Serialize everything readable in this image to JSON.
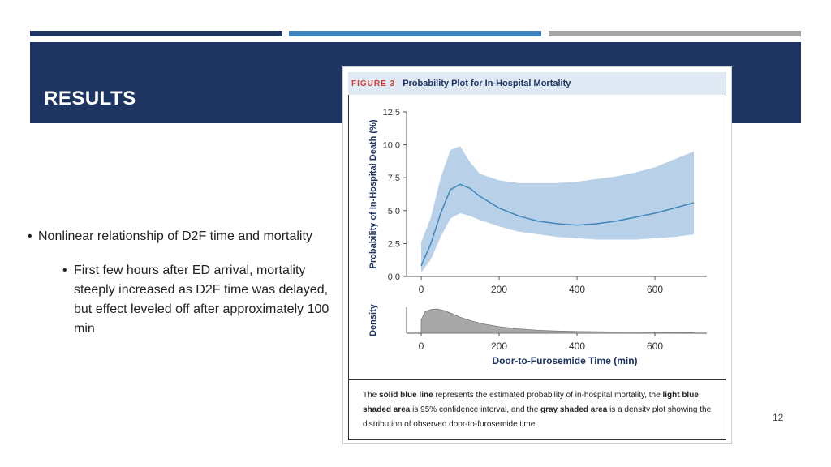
{
  "slide": {
    "title": "RESULTS",
    "page_number": "12",
    "colors": {
      "dark_blue": "#1e3461",
      "mid_blue": "#3d84bf",
      "gray": "#a5a5a5"
    }
  },
  "bullets": {
    "level1": "Nonlinear relationship of D2F time and mortality",
    "level2": "First few hours after ED arrival, mortality steeply increased as D2F time was delayed, but effect leveled off after approximately 100 min"
  },
  "figure": {
    "label": "FIGURE 3",
    "title": "Probability Plot for In-Hospital Mortality",
    "caption": {
      "p1": "The ",
      "b1": "solid blue line",
      "p2": " represents the estimated probability of in-hospital mortality, the ",
      "b2": "light blue shaded area",
      "p3": " is 95% confidence interval, and the ",
      "b3": "gray shaded area",
      "p4": " is a density plot showing the distribution of observed door-to-furosemide time."
    }
  },
  "chart_data": [
    {
      "type": "line",
      "ylabel": "Probability of In-Hospital Death (%)",
      "xlim": [
        0,
        700
      ],
      "ylim": [
        0,
        12.5
      ],
      "xticks": [
        0,
        200,
        400,
        600
      ],
      "yticks": [
        0.0,
        2.5,
        5.0,
        7.5,
        10.0,
        12.5
      ],
      "ytick_labels": [
        "0.0",
        "2.5",
        "5.0",
        "7.5",
        "10.0",
        "12.5"
      ],
      "series": [
        {
          "x": [
            0,
            25,
            50,
            75,
            100,
            125,
            150,
            200,
            250,
            300,
            350,
            400,
            450,
            500,
            550,
            600,
            650,
            700
          ],
          "y": [
            0.8,
            2.5,
            4.8,
            6.6,
            7.0,
            6.7,
            6.1,
            5.2,
            4.6,
            4.2,
            4.0,
            3.9,
            4.0,
            4.2,
            4.5,
            4.8,
            5.2,
            5.6
          ],
          "lower": [
            0.3,
            1.3,
            3.0,
            4.4,
            4.8,
            4.6,
            4.3,
            3.8,
            3.4,
            3.2,
            3.0,
            2.9,
            2.8,
            2.8,
            2.8,
            2.9,
            3.0,
            3.2
          ],
          "upper": [
            2.6,
            4.5,
            7.5,
            9.6,
            9.9,
            8.7,
            7.8,
            7.3,
            7.1,
            7.1,
            7.1,
            7.2,
            7.4,
            7.6,
            7.9,
            8.3,
            8.9,
            9.5
          ]
        }
      ],
      "colors": {
        "line": "#3f86b9",
        "band": "#b9d1e8"
      }
    },
    {
      "type": "area",
      "xlabel": "Door-to-Furosemide Time (min)",
      "ylabel": "Density",
      "xlim": [
        0,
        700
      ],
      "xticks": [
        0,
        200,
        400,
        600
      ],
      "x": [
        0,
        10,
        25,
        40,
        60,
        80,
        100,
        130,
        160,
        200,
        250,
        300,
        350,
        400,
        450,
        500,
        600,
        700
      ],
      "y": [
        0.55,
        0.88,
        0.98,
        1.0,
        0.93,
        0.8,
        0.66,
        0.5,
        0.38,
        0.27,
        0.18,
        0.12,
        0.09,
        0.07,
        0.06,
        0.05,
        0.04,
        0.03
      ],
      "colors": {
        "fill": "#a8a8a8"
      }
    }
  ]
}
